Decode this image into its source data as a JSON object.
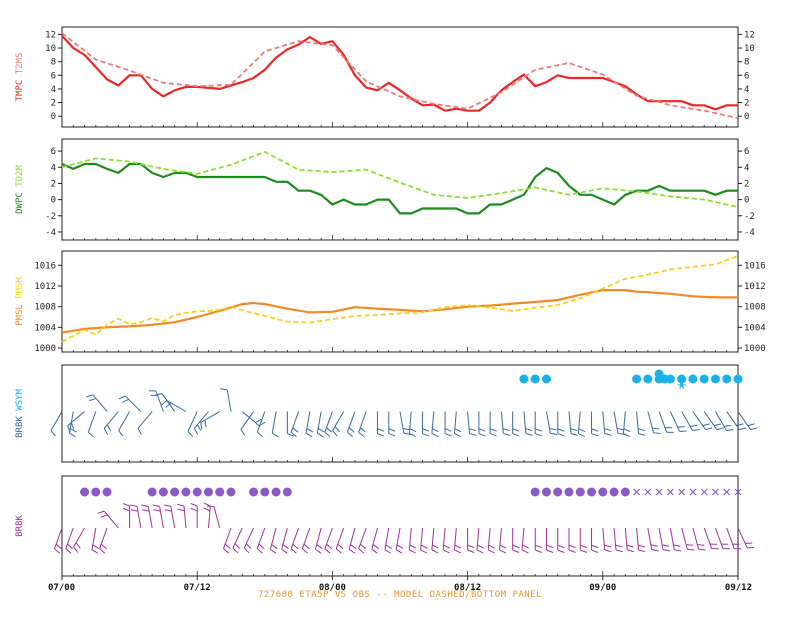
{
  "caption": "727680  ETA5P VS OBS -- MODEL DASHED/BOTTOM PANEL",
  "x_ticks": [
    "07/00",
    "07/12",
    "08/00",
    "08/12",
    "09/00",
    "09/12"
  ],
  "colors": {
    "tmpc_obs": "#e8282a",
    "tmpc_model": "#f07a78",
    "dwpc_obs": "#1f8a1f",
    "dwpc_model": "#88e030",
    "pmsl_obs": "#f08a28",
    "pmsl_model": "#f8d020",
    "wind_obs": "#3a6aa0",
    "wsym_obs": "#1ab0e8",
    "wind_model": "#a030a0",
    "wsym_model": "#8a5ac8"
  },
  "chart_data": [
    {
      "type": "line",
      "ylabel": "TMPC T2MS",
      "ylim": [
        -1,
        12.5
      ],
      "yticks": [
        0,
        2,
        4,
        6,
        8,
        10,
        12
      ],
      "series": [
        {
          "name": "TMPC",
          "style": "solid",
          "x": [
            0,
            1,
            2,
            3,
            4,
            5,
            6,
            7,
            8,
            9,
            10,
            11,
            12,
            14,
            16,
            17,
            18,
            19,
            20,
            21,
            22,
            23,
            24,
            25,
            26,
            27,
            28,
            29,
            30,
            31,
            32,
            33,
            34,
            35,
            36,
            37,
            38,
            39,
            40,
            41,
            42,
            43,
            44,
            45,
            46,
            47,
            48,
            49,
            50,
            51,
            52,
            53,
            54,
            55,
            56,
            57,
            58,
            59,
            60
          ],
          "values": [
            11.8,
            10,
            9,
            7.2,
            5.4,
            4.5,
            6,
            6,
            4,
            2.9,
            3.8,
            4.3,
            4.3,
            4,
            5,
            5.6,
            6.8,
            8.6,
            9.8,
            10.5,
            11.6,
            10.6,
            11,
            9,
            6,
            4.2,
            3.8,
            4.9,
            3.8,
            2.6,
            1.6,
            1.7,
            0.8,
            1.1,
            0.8,
            0.8,
            2,
            3.8,
            5,
            6.1,
            4.4,
            5,
            6,
            5.6,
            5.6,
            5.6,
            5.6,
            5,
            4.4,
            3.2,
            2.2,
            2.2,
            2.2,
            2.2,
            1.6,
            1.6,
            1,
            1.6,
            1.6
          ]
        },
        {
          "name": "T2MS",
          "style": "dashed",
          "x": [
            0,
            3,
            6,
            9,
            12,
            15,
            18,
            21,
            24,
            27,
            30,
            33,
            36,
            39,
            42,
            45,
            48,
            51,
            54,
            57,
            60
          ],
          "values": [
            12.2,
            8.3,
            6.7,
            4.9,
            4.4,
            4.6,
            9.5,
            11,
            10.4,
            5.1,
            2.9,
            1.8,
            1.1,
            3.5,
            6.8,
            7.8,
            6.1,
            3,
            1.6,
            0.8,
            -0.3
          ]
        }
      ]
    },
    {
      "type": "line",
      "ylabel": "DWPC TD2M",
      "ylim": [
        -4.5,
        7
      ],
      "yticks": [
        -4,
        -2,
        0,
        2,
        4,
        6
      ],
      "series": [
        {
          "name": "DWPC",
          "style": "solid",
          "x": [
            0,
            1,
            2,
            3,
            4,
            5,
            6,
            7,
            8,
            9,
            10,
            11,
            12,
            13,
            14,
            15,
            16,
            17,
            18,
            19,
            20,
            21,
            22,
            23,
            24,
            25,
            26,
            27,
            28,
            29,
            30,
            31,
            32,
            33,
            34,
            35,
            36,
            37,
            38,
            39,
            40,
            41,
            42,
            43,
            44,
            45,
            46,
            47,
            48,
            49,
            50,
            51,
            52,
            53,
            54,
            55,
            56,
            57,
            58,
            59,
            60
          ],
          "values": [
            4.4,
            3.8,
            4.4,
            4.4,
            3.8,
            3.3,
            4.4,
            4.4,
            3.3,
            2.8,
            3.3,
            3.3,
            2.8,
            2.8,
            2.8,
            2.8,
            2.8,
            2.8,
            2.8,
            2.2,
            2.2,
            1.1,
            1.1,
            0.6,
            -0.6,
            0,
            -0.6,
            -0.6,
            0,
            0,
            -1.7,
            -1.7,
            -1.1,
            -1.1,
            -1.1,
            -1.1,
            -1.7,
            -1.7,
            -0.6,
            -0.6,
            0,
            0.6,
            2.8,
            3.9,
            3.3,
            1.7,
            0.6,
            0.6,
            0,
            -0.6,
            0.6,
            1.1,
            1.1,
            1.7,
            1.1,
            1.1,
            1.1,
            1.1,
            0.6,
            1.1,
            1.1
          ]
        },
        {
          "name": "TD2M",
          "style": "dashed",
          "x": [
            0,
            3,
            6,
            9,
            12,
            15,
            18,
            21,
            24,
            27,
            30,
            33,
            36,
            39,
            42,
            45,
            48,
            51,
            54,
            57,
            60
          ],
          "values": [
            4,
            5.1,
            4.7,
            3.8,
            3.2,
            4.3,
            5.9,
            3.7,
            3.4,
            3.7,
            2.1,
            0.6,
            0.2,
            0.8,
            1.5,
            0.6,
            1.4,
            1,
            0.4,
            0,
            -0.9
          ]
        }
      ]
    },
    {
      "type": "line",
      "ylabel": "PMSL PMSM",
      "ylim": [
        1000,
        1018
      ],
      "yticks": [
        1000,
        1004,
        1008,
        1012,
        1016
      ],
      "series": [
        {
          "name": "PMSL",
          "style": "solid",
          "x": [
            0,
            2,
            4,
            6,
            8,
            10,
            12,
            14,
            16,
            17,
            18,
            20,
            22,
            24,
            26,
            28,
            30,
            32,
            34,
            36,
            38,
            40,
            42,
            44,
            46,
            48,
            50,
            51,
            52,
            54,
            56,
            58,
            60
          ],
          "values": [
            1003,
            1003.7,
            1004,
            1004.2,
            1004.5,
            1005,
            1006,
            1007.2,
            1008.5,
            1008.7,
            1008.5,
            1007.6,
            1006.9,
            1007,
            1007.9,
            1007.6,
            1007.4,
            1007.1,
            1007.5,
            1008,
            1008.2,
            1008.6,
            1008.9,
            1009.3,
            1010.3,
            1011.2,
            1011.2,
            1010.9,
            1010.8,
            1010.5,
            1010,
            1009.8,
            1009.8
          ]
        },
        {
          "name": "PMSM",
          "style": "dashed",
          "x": [
            0,
            2,
            3,
            4,
            5,
            6,
            7,
            8,
            9,
            10,
            11,
            12,
            13,
            14,
            15,
            16,
            18,
            20,
            22,
            24,
            26,
            28,
            30,
            32,
            34,
            36,
            38,
            40,
            42,
            44,
            46,
            48,
            50,
            52,
            54,
            56,
            58,
            60
          ],
          "values": [
            1001.2,
            1003.5,
            1002.6,
            1004.5,
            1005.7,
            1004.6,
            1005,
            1005.8,
            1005.1,
            1006.4,
            1006.8,
            1007.1,
            1007.2,
            1007.4,
            1008,
            1007.3,
            1006.2,
            1005.1,
            1004.9,
            1005.6,
            1006.2,
            1006.4,
            1006.7,
            1006.9,
            1007.9,
            1008.3,
            1007.8,
            1007.2,
            1007.8,
            1008.3,
            1009.6,
            1011.5,
            1013.4,
            1014.2,
            1015.2,
            1015.7,
            1016.2,
            1017.8
          ]
        }
      ]
    },
    {
      "type": "scatter",
      "ylabel": "BRBK WSYM",
      "series": [
        {
          "name": "BRBK",
          "style": "barbs",
          "x": [
            0,
            1,
            2,
            3,
            4,
            5,
            6,
            7,
            8,
            9,
            10,
            11,
            12,
            13,
            14,
            15,
            16,
            17,
            18,
            19,
            20,
            21,
            22,
            23,
            24,
            25,
            26,
            27,
            28,
            29,
            30,
            31,
            32,
            33,
            34,
            35,
            36,
            37,
            38,
            39,
            40,
            41,
            42,
            43,
            44,
            45,
            46,
            47,
            48,
            49,
            50,
            51,
            52,
            53,
            54,
            55,
            56,
            57,
            58,
            59,
            60
          ],
          "angle_deg": [
            120,
            100,
            140,
            110,
            230,
            130,
            120,
            225,
            130,
            250,
            235,
            210,
            115,
            130,
            150,
            260,
            40,
            125,
            110,
            100,
            90,
            110,
            100,
            100,
            110,
            120,
            110,
            110,
            90,
            90,
            80,
            95,
            90,
            95,
            90,
            95,
            85,
            90,
            90,
            85,
            90,
            85,
            90,
            80,
            90,
            85,
            95,
            90,
            85,
            80,
            95,
            85,
            75,
            70,
            65,
            60,
            55,
            55,
            60,
            55,
            55
          ],
          "count": [
            1,
            2,
            2,
            1,
            2,
            2,
            1,
            2,
            1,
            2,
            1,
            2,
            1,
            2,
            2,
            1,
            2,
            1,
            1,
            1,
            1,
            2,
            2,
            2,
            2,
            2,
            2,
            2,
            2,
            2,
            2,
            2,
            2,
            2,
            2,
            2,
            2,
            2,
            2,
            2,
            2,
            2,
            2,
            2,
            2,
            2,
            2,
            2,
            2,
            2,
            2,
            2,
            2,
            2,
            2,
            2,
            2,
            2,
            2,
            2,
            2
          ]
        },
        {
          "name": "WSYM",
          "style": "dots",
          "x": [
            41,
            42,
            43,
            51,
            52,
            53,
            53,
            53.5,
            54,
            55,
            55,
            56,
            57,
            58,
            59,
            60
          ],
          "level": [
            0,
            0,
            0,
            0,
            0,
            0,
            1,
            0,
            0,
            0,
            0,
            0,
            0,
            0,
            0,
            0
          ],
          "symbol": [
            "dot",
            "dot",
            "dot",
            "dot",
            "dot",
            "dot",
            "dot",
            "dot",
            "dot",
            "asterisk",
            "dot",
            "dot",
            "dot",
            "dot",
            "dot",
            "dot"
          ]
        }
      ]
    },
    {
      "type": "scatter",
      "ylabel": "BRBK",
      "series": [
        {
          "name": "BRBK",
          "style": "barbs",
          "x": [
            0,
            1,
            2,
            3,
            4,
            5,
            6,
            7,
            8,
            9,
            10,
            11,
            12,
            13,
            14,
            15,
            16,
            17,
            18,
            19,
            20,
            21,
            22,
            23,
            24,
            25,
            26,
            27,
            28,
            29,
            30,
            31,
            32,
            33,
            34,
            35,
            36,
            37,
            38,
            39,
            40,
            41,
            42,
            43,
            44,
            45,
            46,
            47,
            48,
            49,
            50,
            51,
            52,
            53,
            54,
            55,
            56,
            57,
            58,
            59,
            60
          ],
          "angle_deg": [
            110,
            110,
            120,
            100,
            110,
            230,
            270,
            260,
            260,
            260,
            260,
            265,
            270,
            275,
            255,
            110,
            115,
            115,
            110,
            105,
            105,
            110,
            110,
            105,
            110,
            110,
            105,
            110,
            105,
            100,
            100,
            95,
            95,
            95,
            95,
            95,
            90,
            95,
            95,
            95,
            90,
            95,
            90,
            90,
            90,
            90,
            90,
            90,
            85,
            85,
            85,
            85,
            80,
            80,
            80,
            75,
            75,
            70,
            70,
            70,
            65
          ],
          "count": [
            2,
            2,
            2,
            2,
            2,
            2,
            2,
            2,
            2,
            2,
            2,
            2,
            2,
            2,
            1,
            2,
            2,
            2,
            2,
            2,
            2,
            2,
            2,
            2,
            2,
            2,
            2,
            2,
            2,
            2,
            2,
            2,
            2,
            2,
            2,
            2,
            2,
            2,
            2,
            2,
            2,
            2,
            2,
            2,
            2,
            2,
            2,
            2,
            2,
            2,
            2,
            2,
            2,
            2,
            2,
            2,
            2,
            2,
            2,
            2,
            2
          ]
        },
        {
          "name": "WSYM",
          "style": "dots",
          "x": [
            2,
            3,
            4,
            8,
            9,
            10,
            11,
            12,
            13,
            14,
            15,
            17,
            18,
            19,
            20,
            42,
            43,
            44,
            45,
            46,
            47,
            48,
            49,
            50,
            51,
            52,
            53,
            54,
            55,
            56,
            57,
            58,
            59,
            60
          ],
          "symbol": [
            "dot",
            "dot",
            "dot",
            "dot",
            "dot",
            "dot",
            "dot",
            "dot",
            "dot",
            "dot",
            "dot",
            "dot",
            "dot",
            "dot",
            "dot",
            "dot",
            "dot",
            "dot",
            "dot",
            "dot",
            "dot",
            "dot",
            "dot",
            "dot",
            "cross",
            "cross",
            "cross",
            "cross",
            "cross",
            "cross",
            "cross",
            "cross",
            "cross",
            "cross"
          ]
        }
      ]
    }
  ]
}
